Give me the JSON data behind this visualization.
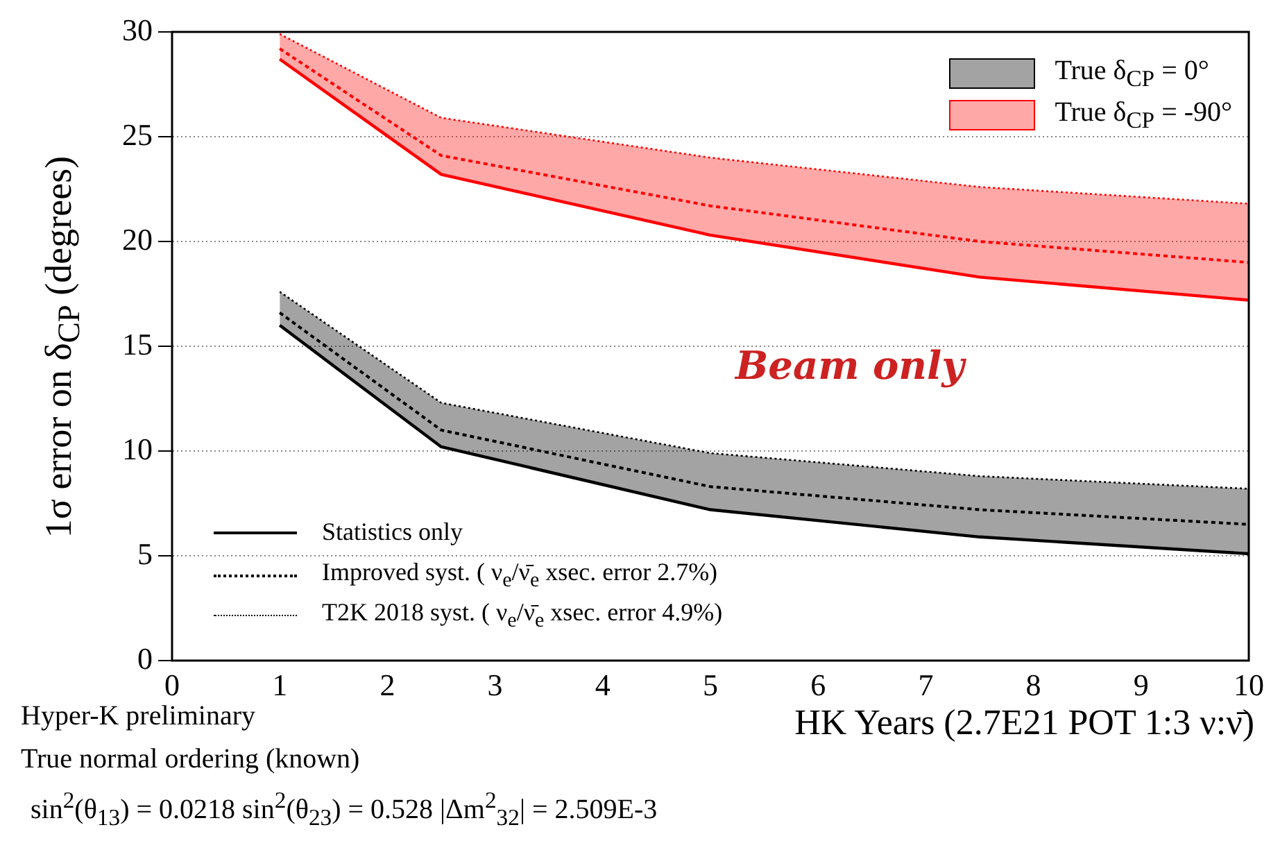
{
  "chart_data": {
    "type": "line",
    "ylabel": "1σ error on δ$_{CP}$ (degrees)",
    "xlabel": "HK Years (2.7E21 POT 1:3 ν:ν̄)",
    "x": [
      1,
      2.5,
      5,
      7.5,
      10
    ],
    "series": [
      {
        "name": "True δ$_{CP}$ = 0°",
        "color": "#000000",
        "values": [
          16.6,
          11.0,
          8.3,
          7.2,
          6.5
        ],
        "lower": [
          16.0,
          10.2,
          7.2,
          5.9,
          5.1
        ],
        "upper": [
          17.6,
          12.3,
          9.9,
          8.8,
          8.2
        ]
      },
      {
        "color": "#000000",
        "line_style": "solid",
        "values": [
          16.0,
          10.2,
          7.2,
          5.9,
          5.1
        ]
      },
      {
        "color": "#000000",
        "line_style": "dotted",
        "values": [
          17.6,
          12.3,
          9.9,
          8.8,
          8.2
        ]
      },
      {
        "name": "True δ$_{CP}$ = -90°",
        "color": "#ff0000",
        "values": [
          29.2,
          24.1,
          21.7,
          20.0,
          19.0
        ],
        "lower": [
          28.7,
          23.2,
          20.3,
          18.3,
          17.2
        ],
        "upper": [
          29.9,
          25.9,
          24.0,
          22.6,
          21.8
        ]
      },
      {
        "color": "#ff0000",
        "line_style": "solid",
        "values": [
          28.7,
          23.2,
          20.3,
          18.3,
          17.2
        ]
      },
      {
        "color": "#ff0000",
        "line_style": "dotted",
        "values": [
          29.9,
          25.9,
          24.0,
          22.6,
          21.8
        ]
      }
    ],
    "xlim": [
      0,
      10
    ],
    "xticks": [
      0,
      1,
      2,
      3,
      4,
      5,
      6,
      7,
      8,
      9,
      10
    ],
    "ylim": [
      0,
      30
    ],
    "yticks": [
      0,
      5,
      10,
      15,
      20,
      25,
      30
    ],
    "grid": "y",
    "legend": "top right",
    "line_style": "dashed",
    "marker": "none",
    "annotations": [
      "Beam only",
      "Statistics only",
      "Improved syst. ( ν$_{e}$/ν̄$_{e}$ xsec. error 2.7%)",
      "T2K 2018 syst. ( ν$_{e}$/ν̄$_{e}$ xsec. error 4.9%)",
      "Hyper-K preliminary",
      "True normal ordering (known)",
      "sin$^{2}$(θ$_{13}$) = 0.0218  sin$^{2}$(θ$_{23}$) = 0.528  |Δm$^{2}$$_{32}$| = 2.509E-3"
    ]
  }
}
